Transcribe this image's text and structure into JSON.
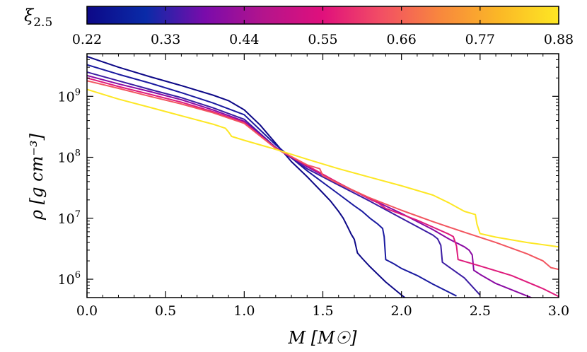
{
  "chart_data": {
    "type": "line",
    "title": "",
    "xlabel": "M [M☉]",
    "ylabel": "ρ [g cm⁻³]",
    "xlim": [
      0.0,
      3.0
    ],
    "ylim": [
      500000,
      5000000000
    ],
    "yscale": "log",
    "grid": false,
    "x_ticks": [
      "0.0",
      "0.5",
      "1.0",
      "1.5",
      "2.0",
      "2.5",
      "3.0"
    ],
    "y_ticks": [
      {
        "base": "10",
        "exp": "6",
        "value": 1000000
      },
      {
        "base": "10",
        "exp": "7",
        "value": 10000000
      },
      {
        "base": "10",
        "exp": "8",
        "value": 100000000
      },
      {
        "base": "10",
        "exp": "9",
        "value": 1000000000
      }
    ],
    "colorbar": {
      "label": "ξ2.5",
      "label_symbol": "ξ",
      "label_subscript": "2.5",
      "range": [
        0.22,
        0.88
      ],
      "ticks": [
        "0.22",
        "0.33",
        "0.44",
        "0.55",
        "0.66",
        "0.77",
        "0.88"
      ],
      "colormap": "plasma",
      "colors": [
        "#0d0887",
        "#0a2ba8",
        "#7a0bab",
        "#b4148c",
        "#e0107c",
        "#f24f64",
        "#f8883d",
        "#fbb826",
        "#fde724"
      ]
    },
    "series": [
      {
        "name": "xi=0.22",
        "xi": 0.22,
        "color": "#0d0887",
        "x": [
          0.0,
          0.2,
          0.4,
          0.6,
          0.8,
          0.9,
          1.0,
          1.1,
          1.2,
          1.3,
          1.4,
          1.5,
          1.55,
          1.6,
          1.63,
          1.66,
          1.68,
          1.7,
          1.72,
          1.75,
          1.8,
          1.9,
          2.0,
          2.1
        ],
        "y": [
          4500000000.0,
          3000000000.0,
          2100000000.0,
          1500000000.0,
          1050000000.0,
          850000000.0,
          600000000.0,
          340000000.0,
          170000000.0,
          85000000.0,
          48000000.0,
          26000000.0,
          19000000.0,
          13000000.0,
          10000000.0,
          7000000.0,
          5500000.0,
          4500000.0,
          2700000.0,
          2200000.0,
          1600000.0,
          900000.0,
          550000.0,
          350000.0
        ]
      },
      {
        "name": "xi=0.28",
        "xi": 0.28,
        "color": "#1a1aa0",
        "x": [
          0.0,
          0.2,
          0.4,
          0.6,
          0.8,
          1.0,
          1.2,
          1.4,
          1.6,
          1.7,
          1.75,
          1.8,
          1.85,
          1.88,
          1.89,
          1.9,
          1.95,
          2.0,
          2.1,
          2.2,
          2.35
        ],
        "y": [
          3300000000.0,
          2300000000.0,
          1650000000.0,
          1150000000.0,
          780000000.0,
          500000000.0,
          160000000.0,
          60000000.0,
          25000000.0,
          16000000.0,
          13000000.0,
          10000000.0,
          8000000.0,
          6800000.0,
          5000000.0,
          2100000.0,
          1800000.0,
          1500000.0,
          1150000.0,
          830000.0,
          530000.0
        ]
      },
      {
        "name": "xi=0.36",
        "xi": 0.36,
        "color": "#3b1ca3",
        "x": [
          0.0,
          0.2,
          0.4,
          0.6,
          0.8,
          1.0,
          1.2,
          1.4,
          1.6,
          1.8,
          2.0,
          2.1,
          2.2,
          2.23,
          2.25,
          2.26,
          2.3,
          2.4,
          2.5
        ],
        "y": [
          2500000000.0,
          1800000000.0,
          1300000000.0,
          950000000.0,
          650000000.0,
          420000000.0,
          145000000.0,
          65000000.0,
          35000000.0,
          19000000.0,
          10000000.0,
          7300000.0,
          5300000.0,
          4600000.0,
          3600000.0,
          1900000.0,
          1600000.0,
          1050000.0,
          550000.0
        ]
      },
      {
        "name": "xi=0.46",
        "xi": 0.46,
        "color": "#8a0aa3",
        "x": [
          0.0,
          0.2,
          0.4,
          0.6,
          0.8,
          1.0,
          1.2,
          1.4,
          1.6,
          1.8,
          2.0,
          2.2,
          2.3,
          2.4,
          2.43,
          2.45,
          2.46,
          2.5,
          2.6,
          2.8,
          3.0
        ],
        "y": [
          2200000000.0,
          1600000000.0,
          1200000000.0,
          880000000.0,
          600000000.0,
          390000000.0,
          145000000.0,
          70000000.0,
          37000000.0,
          21000000.0,
          12000000.0,
          6500000.0,
          4600000.0,
          3400000.0,
          3000000.0,
          2500000.0,
          1400000.0,
          1200000.0,
          850000.0,
          530000.0,
          330000.0
        ]
      },
      {
        "name": "xi=0.59",
        "xi": 0.59,
        "color": "#de1b7c",
        "x": [
          0.0,
          0.2,
          0.4,
          0.6,
          0.8,
          1.0,
          1.2,
          1.4,
          1.6,
          1.8,
          1.85,
          1.9,
          2.1,
          2.3,
          2.33,
          2.35,
          2.36,
          2.5,
          2.7,
          2.9,
          3.0
        ],
        "y": [
          2000000000.0,
          1450000000.0,
          1080000000.0,
          800000000.0,
          560000000.0,
          370000000.0,
          140000000.0,
          73000000.0,
          38000000.0,
          20500000.0,
          18000000.0,
          14500000.0,
          9300000.0,
          5500000.0,
          5000000.0,
          3500000.0,
          2100000.0,
          1650000.0,
          1150000.0,
          700000.0,
          520000.0
        ]
      },
      {
        "name": "xi=0.66",
        "xi": 0.66,
        "color": "#f2555f",
        "x": [
          0.0,
          0.2,
          0.4,
          0.6,
          0.8,
          1.0,
          1.2,
          1.4,
          1.48,
          1.5,
          1.6,
          1.8,
          2.0,
          2.2,
          2.4,
          2.6,
          2.8,
          2.9,
          2.95,
          3.0
        ],
        "y": [
          1800000000.0,
          1350000000.0,
          1000000000.0,
          750000000.0,
          540000000.0,
          360000000.0,
          140000000.0,
          75000000.0,
          65000000.0,
          50000000.0,
          37000000.0,
          21500000.0,
          13500000.0,
          8800000.0,
          5900000.0,
          4000000.0,
          2600000.0,
          2000000.0,
          1550000.0,
          1450000.0
        ]
      },
      {
        "name": "xi=0.88",
        "xi": 0.88,
        "color": "#fde724",
        "x": [
          0.0,
          0.2,
          0.4,
          0.6,
          0.8,
          0.88,
          0.9,
          0.92,
          1.0,
          1.2,
          1.4,
          1.6,
          1.8,
          2.0,
          2.2,
          2.3,
          2.4,
          2.47,
          2.48,
          2.5,
          2.6,
          2.8,
          3.0
        ],
        "y": [
          1300000000.0,
          900000000.0,
          660000000.0,
          480000000.0,
          350000000.0,
          300000000.0,
          260000000.0,
          220000000.0,
          190000000.0,
          135000000.0,
          93000000.0,
          65000000.0,
          47000000.0,
          34000000.0,
          24000000.0,
          18000000.0,
          13000000.0,
          11500000.0,
          8000000.0,
          5600000.0,
          4900000.0,
          4000000.0,
          3400000.0
        ]
      }
    ]
  }
}
